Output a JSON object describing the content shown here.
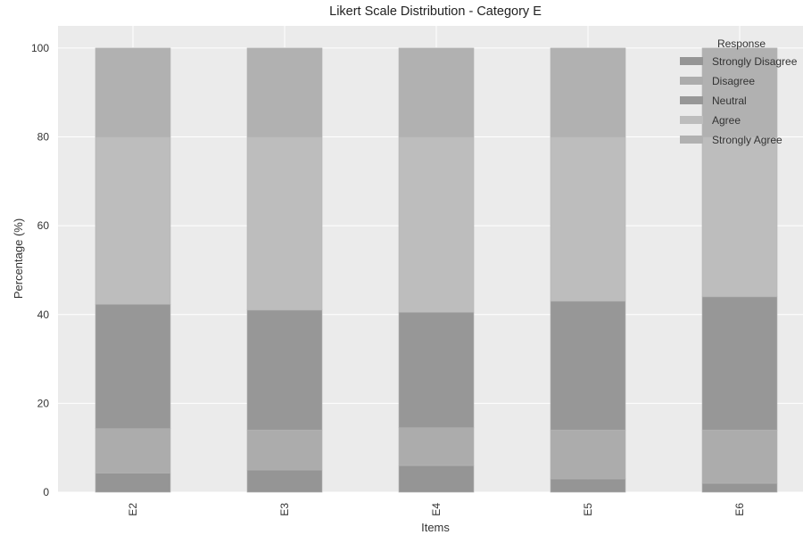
{
  "chart_data": {
    "type": "bar",
    "stacked": true,
    "title": "Likert Scale Distribution - Category E",
    "xlabel": "Items",
    "ylabel": "Percentage (%)",
    "categories": [
      "E2",
      "E3",
      "E4",
      "E5",
      "E6"
    ],
    "ylim": [
      0,
      105
    ],
    "yticks": [
      0,
      20,
      40,
      60,
      80,
      100
    ],
    "grid": true,
    "legend": {
      "title": "Response",
      "placement": "top-right"
    },
    "series": [
      {
        "name": "Strongly Disagree",
        "color": "#959595",
        "values": [
          4.3,
          5.0,
          6.0,
          3.0,
          2.0
        ]
      },
      {
        "name": "Disagree",
        "color": "#acacac",
        "values": [
          10.0,
          9.0,
          8.5,
          11.0,
          12.0
        ]
      },
      {
        "name": "Neutral",
        "color": "#979797",
        "values": [
          28.0,
          27.0,
          26.0,
          29.0,
          30.0
        ]
      },
      {
        "name": "Agree",
        "color": "#bdbdbd",
        "values": [
          37.7,
          39.0,
          39.5,
          37.0,
          36.0
        ]
      },
      {
        "name": "Strongly Agree",
        "color": "#b1b1b1",
        "values": [
          20.0,
          20.0,
          20.0,
          20.0,
          20.0
        ]
      }
    ]
  }
}
